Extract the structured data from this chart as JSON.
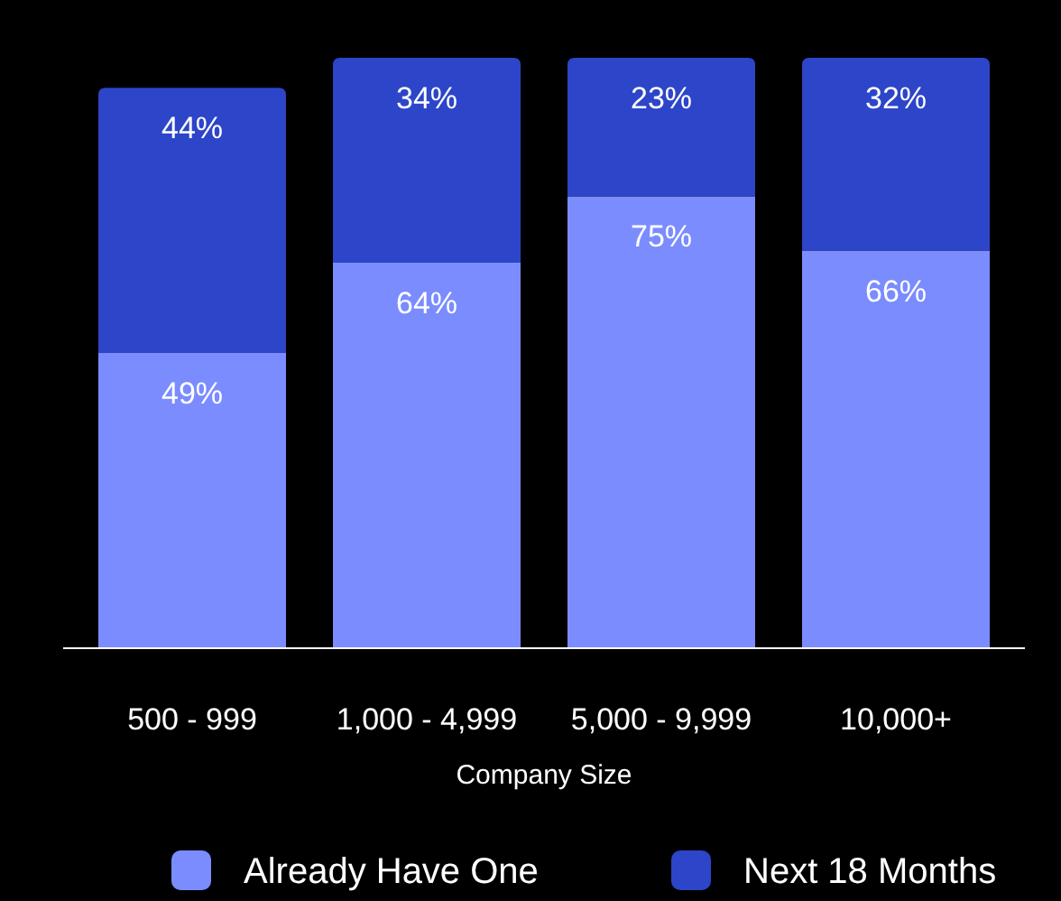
{
  "chart_data": {
    "type": "bar",
    "stacked": true,
    "xlabel": "Company Size",
    "categories": [
      "500 - 999",
      "1,000 - 4,999",
      "5,000 - 9,999",
      "10,000+"
    ],
    "series": [
      {
        "name": "Already Have One",
        "color": "#7b8cff",
        "values": [
          49,
          64,
          75,
          66
        ],
        "value_labels": [
          "49%",
          "64%",
          "75%",
          "66%"
        ]
      },
      {
        "name": "Next 18 Months",
        "color": "#2d45c8",
        "values": [
          44,
          34,
          23,
          32
        ],
        "value_labels": [
          "44%",
          "34%",
          "23%",
          "32%"
        ]
      }
    ],
    "legend": "bottom"
  }
}
